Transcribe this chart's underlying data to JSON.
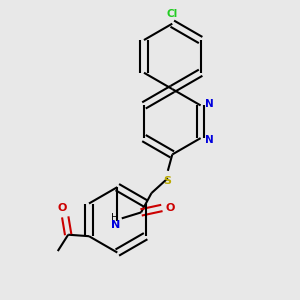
{
  "bg_color": "#e8e8e8",
  "bond_color": "#000000",
  "n_color": "#0000dd",
  "o_color": "#cc0000",
  "s_color": "#bbaa00",
  "cl_color": "#22cc22",
  "line_width": 1.5,
  "dbo": 0.012,
  "ring_r": 0.11,
  "xlim": [
    0.0,
    1.0
  ],
  "ylim": [
    0.0,
    1.0
  ]
}
